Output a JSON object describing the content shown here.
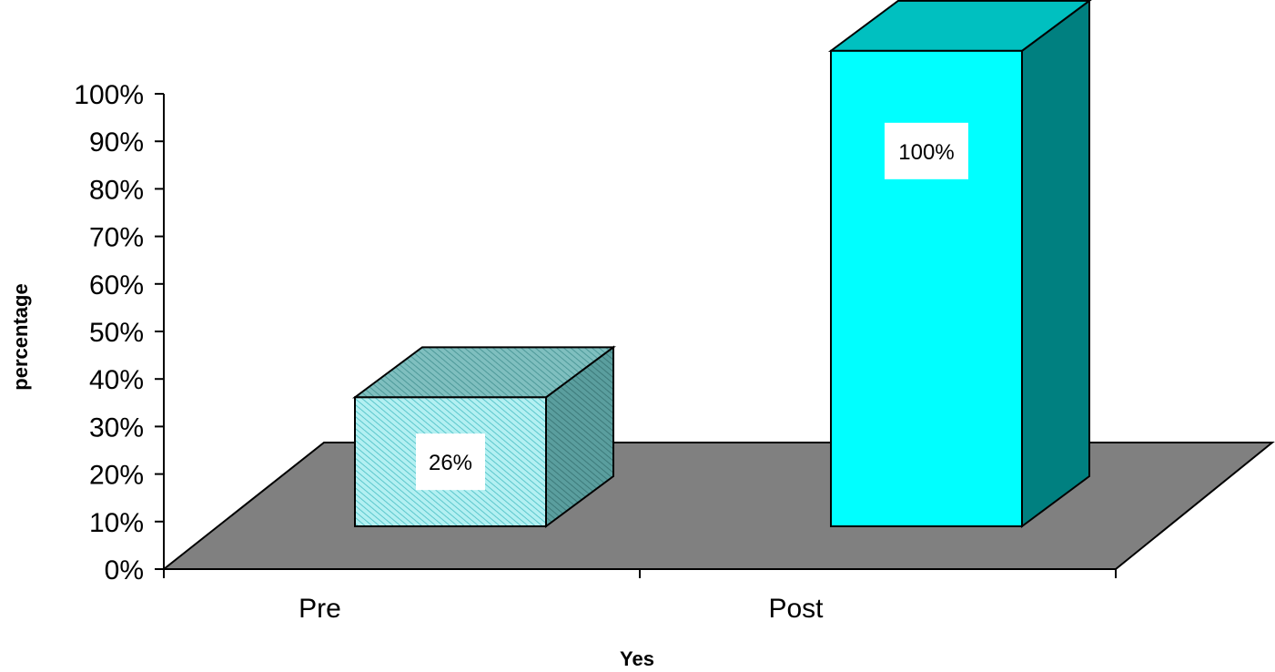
{
  "chart_data": {
    "type": "bar",
    "style": "3d-column",
    "categories": [
      "Pre",
      "Post"
    ],
    "values": [
      26,
      100
    ],
    "data_labels": [
      "26%",
      "100%"
    ],
    "xlabel": "Yes",
    "ylabel": "percentage",
    "ylim": [
      0,
      100
    ],
    "yticks": [
      "0%",
      "10%",
      "20%",
      "30%",
      "40%",
      "50%",
      "60%",
      "70%",
      "80%",
      "90%",
      "100%"
    ],
    "grid": false,
    "legend": false,
    "colors": {
      "floor": "#808080",
      "pre_front": "#b3f0f2",
      "pre_stripe": "#5cc7cc",
      "pre_top": "#66b3b3",
      "pre_side": "#408c8c",
      "post_front": "#00ffff",
      "post_top": "#00c0c0",
      "post_side": "#008080",
      "label_bg": "#ffffff"
    }
  }
}
